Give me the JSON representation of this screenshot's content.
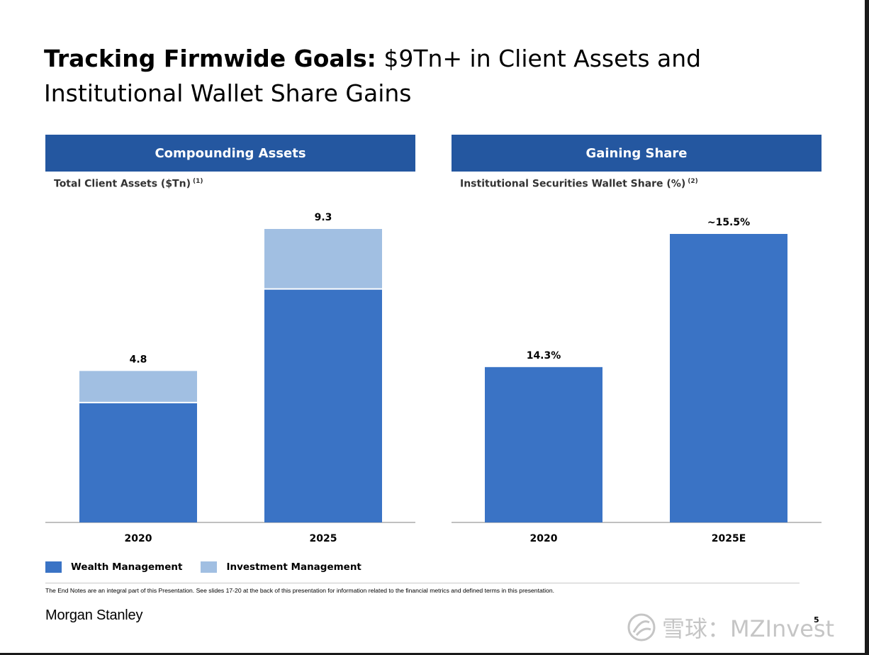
{
  "title": {
    "bold": "Tracking Firmwide Goals:",
    "regular": " $9Tn+ in Client Assets and Institutional Wallet Share Gains"
  },
  "panels": [
    {
      "header": "Compounding Assets",
      "subtitle": "Total Client Assets ($Tn)",
      "footnote_ref": "(1)"
    },
    {
      "header": "Gaining Share",
      "subtitle": "Institutional Securities Wallet Share (%)",
      "footnote_ref": "(2)"
    }
  ],
  "chart_data": [
    {
      "type": "bar",
      "stacked": true,
      "categories": [
        "2020",
        "2025"
      ],
      "series": [
        {
          "name": "Wealth Management",
          "values": [
            3.8,
            7.4
          ]
        },
        {
          "name": "Investment Management",
          "values": [
            1.0,
            1.9
          ]
        }
      ],
      "totals": [
        4.8,
        9.3
      ],
      "total_labels": [
        "4.8",
        "9.3"
      ],
      "colors": [
        "#3a73c5",
        "#a1bfe2"
      ],
      "ylim": [
        0,
        9.3
      ]
    },
    {
      "type": "bar",
      "categories": [
        "2020",
        "2025E"
      ],
      "values": [
        14.3,
        15.5
      ],
      "value_labels": [
        "14.3%",
        "~15.5%"
      ],
      "color": "#3a73c5"
    }
  ],
  "legend": [
    {
      "label": "Wealth Management",
      "color": "#3a73c5"
    },
    {
      "label": "Investment Management",
      "color": "#a1bfe2"
    }
  ],
  "footer": {
    "endnote": "The End Notes are an integral part of this Presentation. See slides 17-20 at the back of this presentation for information related to the financial metrics and defined terms in this presentation.",
    "logo": "Morgan Stanley",
    "page_number": "5"
  },
  "watermark": {
    "text": "雪球：MZInvest",
    "icon": "snowball-logo-icon"
  },
  "colors": {
    "header_blue": "#2457a0",
    "wealth_blue": "#3a73c5",
    "investment_blue": "#a1bfe2"
  }
}
